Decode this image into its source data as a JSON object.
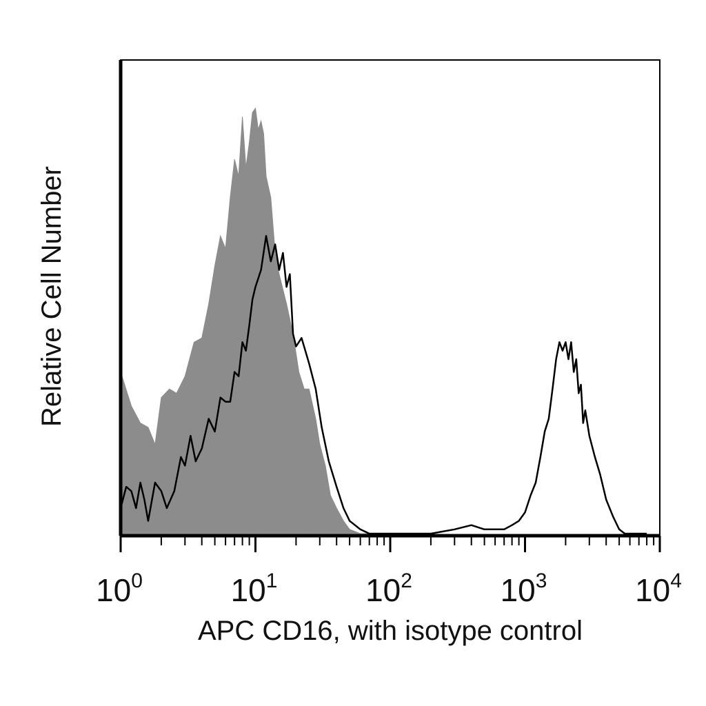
{
  "chart_data": {
    "type": "area",
    "xlabel": "APC CD16, with isotype control",
    "ylabel": "Relative Cell Number",
    "x_scale": "log",
    "xlim": [
      1,
      10000
    ],
    "ylim": [
      0,
      100
    ],
    "y_ticks_shown": false,
    "grid": false,
    "legend": "none",
    "x_ticks": [
      {
        "base": "10",
        "exp": "0",
        "value": 1
      },
      {
        "base": "10",
        "exp": "1",
        "value": 10
      },
      {
        "base": "10",
        "exp": "2",
        "value": 100
      },
      {
        "base": "10",
        "exp": "3",
        "value": 1000
      },
      {
        "base": "10",
        "exp": "4",
        "value": 10000
      }
    ],
    "series": [
      {
        "style": "filled",
        "color": "#8c8c8c",
        "x": [
          1,
          1.2,
          1.4,
          1.6,
          1.8,
          2,
          2.3,
          2.6,
          3,
          3.5,
          4,
          4.5,
          5,
          5.5,
          6,
          6.5,
          7,
          7.5,
          8,
          8.5,
          9,
          9.5,
          10,
          10.5,
          11,
          11.5,
          12,
          13,
          14,
          15,
          17,
          19,
          21,
          23,
          25,
          28,
          30,
          33,
          36,
          40,
          45,
          50,
          60,
          80
        ],
        "y": [
          38,
          30,
          26,
          25,
          21,
          32,
          34,
          33,
          37,
          45,
          46,
          54,
          63,
          70,
          67,
          79,
          88,
          84,
          98,
          86,
          92,
          99,
          100,
          95,
          97,
          94,
          84,
          79,
          66,
          61,
          54,
          47,
          38,
          34,
          34,
          27,
          21,
          16,
          9,
          6,
          3,
          1,
          0,
          0
        ]
      },
      {
        "style": "outline",
        "color": "#000000",
        "x": [
          1,
          1.1,
          1.2,
          1.3,
          1.4,
          1.5,
          1.6,
          1.8,
          2,
          2.2,
          2.5,
          2.8,
          3,
          3.3,
          3.6,
          4,
          4.5,
          5,
          5.5,
          6,
          6.5,
          7,
          7.5,
          8,
          8.5,
          9,
          9.5,
          10,
          11,
          12,
          13,
          14,
          15,
          16,
          17,
          18,
          19,
          20,
          22,
          25,
          28,
          31,
          35,
          40,
          45,
          50,
          60,
          70,
          80,
          100,
          150,
          200,
          300,
          400,
          500,
          600,
          700,
          800,
          900,
          1000,
          1100,
          1200,
          1300,
          1400,
          1500,
          1600,
          1700,
          1800,
          1900,
          2000,
          2100,
          2200,
          2300,
          2400,
          2500,
          2600,
          2700,
          2800,
          3000,
          3300,
          3600,
          4000,
          4500,
          5000,
          5500,
          6000,
          7000,
          8000
        ],
        "y": [
          6,
          11,
          10,
          6,
          12,
          8,
          3,
          12,
          10,
          6,
          10,
          18,
          16,
          23,
          17,
          20,
          27,
          24,
          32,
          31,
          31,
          38,
          37,
          45,
          43,
          49,
          55,
          58,
          62,
          70,
          64,
          68,
          62,
          66,
          58,
          61,
          47,
          44,
          46,
          40,
          34,
          25,
          17,
          11,
          6,
          3,
          1,
          0,
          0,
          0,
          0,
          0,
          1,
          2,
          1,
          1,
          1,
          2,
          3,
          5,
          9,
          12,
          18,
          24,
          27,
          34,
          41,
          45,
          43,
          45,
          41,
          45,
          38,
          41,
          33,
          35,
          26,
          29,
          23,
          18,
          14,
          8,
          4,
          1,
          0,
          0,
          0,
          0
        ]
      }
    ]
  }
}
